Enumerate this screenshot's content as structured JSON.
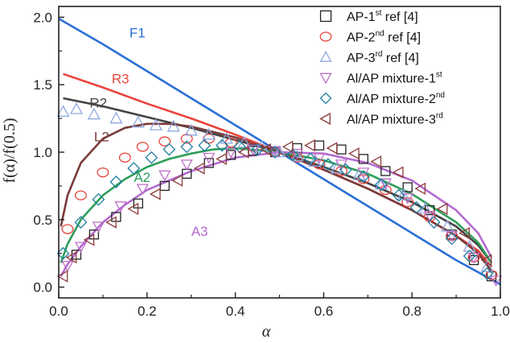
{
  "chart_data": {
    "type": "scatter",
    "xlabel": "α",
    "ylabel": "f(α)/f(0.5)",
    "xlim": [
      0.0,
      1.0
    ],
    "ylim": [
      -0.08,
      2.08
    ],
    "xticks": [
      "0.0",
      "0.2",
      "0.4",
      "0.6",
      "0.8",
      "1.0"
    ],
    "xtick_values": [
      0.0,
      0.2,
      0.4,
      0.6,
      0.8,
      1.0
    ],
    "yticks": [
      "0.0",
      "0.5",
      "1.0",
      "1.5",
      "2.0"
    ],
    "ytick_values": [
      0.0,
      0.5,
      1.0,
      1.5,
      2.0
    ],
    "grid": false,
    "legend_position": "top-right",
    "legend": [
      {
        "marker": "square",
        "color": "#222222",
        "text": "AP-1",
        "sup": "st",
        "suffix": " ref [4]"
      },
      {
        "marker": "circle",
        "color": "#e8453c",
        "text": "AP-2",
        "sup": "nd",
        "suffix": " ref [4]"
      },
      {
        "marker": "triangle-up",
        "color": "#8fa8e0",
        "text": "AP-3",
        "sup": "rd",
        "suffix": " ref [4]"
      },
      {
        "marker": "triangle-down",
        "color": "#c070c8",
        "text": "Al/AP mixture-1",
        "sup": "st",
        "suffix": ""
      },
      {
        "marker": "diamond",
        "color": "#1f7ea0",
        "text": "Al/AP mixture-2",
        "sup": "nd",
        "suffix": ""
      },
      {
        "marker": "triangle-left",
        "color": "#8b3a3a",
        "text": "Al/AP mixture-3",
        "sup": "rd",
        "suffix": ""
      }
    ],
    "curves": [
      {
        "label": "F1",
        "color": "#2a6fd6",
        "dashed": false,
        "label_at": [
          0.16,
          1.85
        ],
        "x": [
          0.0,
          0.1,
          0.2,
          0.3,
          0.4,
          0.5,
          0.6,
          0.7,
          0.8,
          0.9,
          1.0
        ],
        "y": [
          1.99,
          1.8,
          1.6,
          1.4,
          1.2,
          1.0,
          0.8,
          0.6,
          0.4,
          0.2,
          0.02
        ]
      },
      {
        "label": "R3",
        "color": "#e8453c",
        "dashed": false,
        "label_at": [
          0.12,
          1.51
        ],
        "x": [
          0.01,
          0.1,
          0.2,
          0.3,
          0.4,
          0.5,
          0.6,
          0.7,
          0.8,
          0.9,
          0.95,
          0.98
        ],
        "y": [
          1.58,
          1.48,
          1.36,
          1.25,
          1.13,
          1.0,
          0.87,
          0.73,
          0.57,
          0.38,
          0.27,
          0.15
        ]
      },
      {
        "label": "R2",
        "color": "#444444",
        "dashed": false,
        "label_at": [
          0.07,
          1.33
        ],
        "x": [
          0.01,
          0.1,
          0.2,
          0.3,
          0.4,
          0.5,
          0.6,
          0.7,
          0.8,
          0.9,
          0.95,
          0.98
        ],
        "y": [
          1.4,
          1.34,
          1.26,
          1.18,
          1.09,
          1.0,
          0.89,
          0.77,
          0.63,
          0.45,
          0.31,
          0.18
        ]
      },
      {
        "label": "L2",
        "color": "#7a3b3b",
        "dashed": false,
        "label_at": [
          0.08,
          1.08
        ],
        "x": [
          0.005,
          0.02,
          0.05,
          0.1,
          0.15,
          0.2,
          0.25,
          0.3,
          0.4,
          0.5,
          0.6,
          0.7,
          0.8,
          0.9,
          0.95,
          0.98
        ],
        "y": [
          0.45,
          0.68,
          0.92,
          1.1,
          1.18,
          1.21,
          1.21,
          1.19,
          1.11,
          1.0,
          0.87,
          0.73,
          0.57,
          0.38,
          0.25,
          0.12
        ]
      },
      {
        "label": "A2",
        "color": "#2f9e5a",
        "dashed": false,
        "label_at": [
          0.17,
          0.78
        ],
        "x": [
          0.005,
          0.02,
          0.05,
          0.1,
          0.15,
          0.2,
          0.25,
          0.3,
          0.35,
          0.4,
          0.5,
          0.6,
          0.7,
          0.8,
          0.9,
          0.95,
          0.98
        ],
        "y": [
          0.18,
          0.32,
          0.5,
          0.68,
          0.8,
          0.89,
          0.95,
          0.99,
          1.02,
          1.03,
          1.0,
          0.94,
          0.84,
          0.69,
          0.48,
          0.33,
          0.18
        ]
      },
      {
        "label": "A3",
        "color": "#b36ad0",
        "dashed": false,
        "label_at": [
          0.3,
          0.38
        ],
        "x": [
          0.005,
          0.02,
          0.05,
          0.1,
          0.15,
          0.2,
          0.3,
          0.4,
          0.5,
          0.6,
          0.7,
          0.8,
          0.9,
          0.95,
          0.98
        ],
        "y": [
          0.08,
          0.17,
          0.3,
          0.48,
          0.61,
          0.72,
          0.86,
          0.96,
          1.0,
          0.99,
          0.92,
          0.79,
          0.57,
          0.4,
          0.22
        ]
      }
    ],
    "series": [
      {
        "marker": "square",
        "color": "#222222",
        "size": 5.5,
        "x": [
          0.04,
          0.08,
          0.13,
          0.18,
          0.24,
          0.29,
          0.34,
          0.39,
          0.44,
          0.49,
          0.54,
          0.59,
          0.64,
          0.69,
          0.74,
          0.79,
          0.84,
          0.89,
          0.94,
          0.98
        ],
        "y": [
          0.24,
          0.39,
          0.52,
          0.62,
          0.75,
          0.84,
          0.92,
          0.98,
          1.01,
          1.0,
          1.03,
          1.05,
          1.02,
          0.95,
          0.86,
          0.74,
          0.57,
          0.39,
          0.2,
          0.08
        ]
      },
      {
        "marker": "circle",
        "color": "#e8453c",
        "size": 6.5,
        "x": [
          0.02,
          0.05,
          0.1,
          0.15,
          0.19,
          0.24,
          0.29,
          0.34,
          0.39,
          0.44,
          0.49,
          0.54,
          0.59,
          0.64,
          0.69,
          0.74,
          0.79,
          0.84,
          0.89,
          0.94,
          0.98
        ],
        "y": [
          0.43,
          0.68,
          0.85,
          0.96,
          1.04,
          1.08,
          1.1,
          1.1,
          1.07,
          1.04,
          1.0,
          0.96,
          0.91,
          0.86,
          0.8,
          0.72,
          0.63,
          0.52,
          0.38,
          0.22,
          0.09
        ]
      },
      {
        "marker": "triangle-up",
        "color": "#8fa8e0",
        "size": 7.0,
        "x": [
          0.01,
          0.04,
          0.08,
          0.13,
          0.18,
          0.22,
          0.26,
          0.3,
          0.34,
          0.38,
          0.42,
          0.46,
          0.5,
          0.54,
          0.58,
          0.63,
          0.68,
          0.73,
          0.78,
          0.83,
          0.88,
          0.93,
          0.97
        ],
        "y": [
          1.3,
          1.32,
          1.28,
          1.25,
          1.22,
          1.2,
          1.19,
          1.16,
          1.13,
          1.1,
          1.07,
          1.04,
          1.0,
          0.97,
          0.93,
          0.88,
          0.83,
          0.76,
          0.68,
          0.58,
          0.45,
          0.3,
          0.15
        ]
      },
      {
        "marker": "triangle-down",
        "color": "#c070c8",
        "size": 6.5,
        "x": [
          0.02,
          0.05,
          0.09,
          0.14,
          0.19,
          0.24,
          0.29,
          0.34,
          0.39,
          0.44,
          0.49,
          0.54,
          0.59,
          0.64,
          0.69,
          0.74,
          0.79,
          0.84,
          0.89,
          0.94,
          0.99
        ],
        "y": [
          0.16,
          0.3,
          0.45,
          0.6,
          0.73,
          0.83,
          0.91,
          0.96,
          1.0,
          1.02,
          1.01,
          0.99,
          0.96,
          0.91,
          0.85,
          0.77,
          0.66,
          0.53,
          0.38,
          0.22,
          0.05
        ]
      },
      {
        "marker": "diamond",
        "color": "#1f7ea0",
        "size": 7.0,
        "x": [
          0.01,
          0.05,
          0.09,
          0.13,
          0.17,
          0.21,
          0.25,
          0.29,
          0.33,
          0.37,
          0.41,
          0.45,
          0.49,
          0.53,
          0.57,
          0.61,
          0.65,
          0.69,
          0.73,
          0.77,
          0.81,
          0.85,
          0.89,
          0.93,
          0.97
        ],
        "y": [
          0.25,
          0.48,
          0.65,
          0.78,
          0.88,
          0.96,
          1.02,
          1.04,
          1.05,
          1.05,
          1.04,
          1.02,
          1.0,
          0.98,
          0.95,
          0.91,
          0.87,
          0.82,
          0.76,
          0.68,
          0.59,
          0.48,
          0.36,
          0.23,
          0.1
        ]
      },
      {
        "marker": "triangle-left",
        "color": "#8b3a3a",
        "size": 6.5,
        "x": [
          0.01,
          0.03,
          0.07,
          0.12,
          0.17,
          0.22,
          0.27,
          0.32,
          0.37,
          0.42,
          0.47,
          0.52,
          0.57,
          0.62,
          0.67,
          0.72,
          0.77,
          0.82,
          0.87,
          0.92,
          0.97
        ],
        "y": [
          0.08,
          0.22,
          0.35,
          0.48,
          0.58,
          0.69,
          0.79,
          0.88,
          0.95,
          1.0,
          1.02,
          1.04,
          1.05,
          1.03,
          0.99,
          0.93,
          0.85,
          0.73,
          0.58,
          0.4,
          0.2
        ]
      }
    ]
  }
}
